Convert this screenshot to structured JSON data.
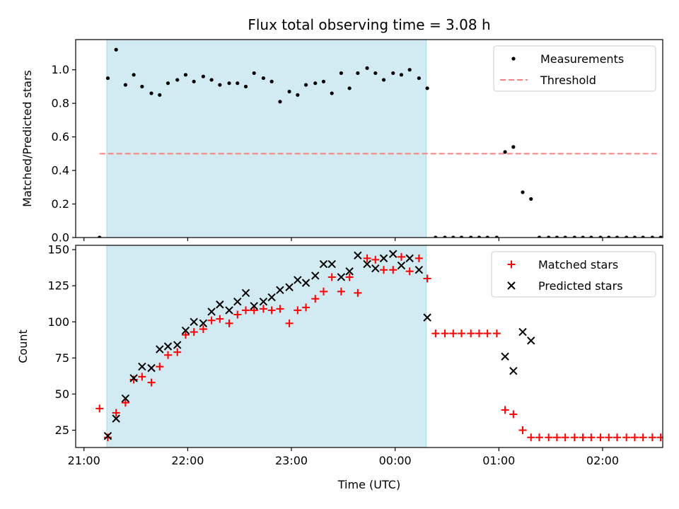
{
  "figure_title": "Flux total observing time = 3.08 h",
  "colors": {
    "shade": "#add8e6",
    "measurement": "#000000",
    "threshold": "#ff8080",
    "matched": "#ff0000",
    "predicted": "#000000"
  },
  "chart_data": [
    {
      "type": "scatter",
      "ylabel": "Matched/Predicted stars",
      "xlim": [
        -0.08,
        5.58
      ],
      "ylim": [
        0,
        1.18
      ],
      "yticks": [
        "0.0",
        "0.2",
        "0.4",
        "0.6",
        "0.8",
        "1.0"
      ],
      "grid": false,
      "legend_position": "top-right",
      "shaded_interval": [
        0.22,
        3.3
      ],
      "threshold": {
        "name": "Threshold",
        "value": 0.5,
        "x_range": [
          0.15,
          5.55
        ]
      },
      "series": [
        {
          "name": "Measurements",
          "marker": "dot",
          "x": [
            0.15,
            0.23,
            0.31,
            0.4,
            0.48,
            0.56,
            0.65,
            0.73,
            0.81,
            0.9,
            0.98,
            1.06,
            1.15,
            1.23,
            1.31,
            1.4,
            1.48,
            1.56,
            1.64,
            1.73,
            1.81,
            1.89,
            1.98,
            2.06,
            2.14,
            2.23,
            2.31,
            2.39,
            2.48,
            2.56,
            2.64,
            2.73,
            2.81,
            2.89,
            2.98,
            3.06,
            3.14,
            3.23,
            3.31,
            3.39,
            3.48,
            3.56,
            3.64,
            3.73,
            3.81,
            3.89,
            3.98,
            4.06,
            4.14,
            4.23,
            4.31,
            4.39,
            4.48,
            4.56,
            4.64,
            4.73,
            4.81,
            4.89,
            4.98,
            5.06,
            5.14,
            5.23,
            5.31,
            5.39,
            5.48,
            5.56
          ],
          "y": [
            0.0,
            0.95,
            1.12,
            0.91,
            0.97,
            0.9,
            0.86,
            0.85,
            0.92,
            0.94,
            0.97,
            0.93,
            0.96,
            0.94,
            0.91,
            0.92,
            0.92,
            0.9,
            0.98,
            0.95,
            0.93,
            0.81,
            0.87,
            0.85,
            0.91,
            0.92,
            0.93,
            0.86,
            0.98,
            0.89,
            0.98,
            1.01,
            0.98,
            0.94,
            0.98,
            0.97,
            1.0,
            0.95,
            0.89,
            0.0,
            0.0,
            0.0,
            0.0,
            0.0,
            0.0,
            0.0,
            0.0,
            0.51,
            0.54,
            0.27,
            0.23,
            0.0,
            0.0,
            0.0,
            0.0,
            0.0,
            0.0,
            0.0,
            0.0,
            0.0,
            0.0,
            0.0,
            0.0,
            0.0,
            0.0,
            0.0
          ]
        }
      ]
    },
    {
      "type": "scatter",
      "xlabel": "Time (UTC)",
      "ylabel": "Count",
      "xlim": [
        -0.08,
        5.58
      ],
      "ylim": [
        13,
        153
      ],
      "yticks": [
        "25",
        "50",
        "75",
        "100",
        "125",
        "150"
      ],
      "xticks": [
        "21:00",
        "22:00",
        "23:00",
        "00:00",
        "01:00",
        "02:00"
      ],
      "grid": false,
      "legend_position": "top-right",
      "shaded_interval": [
        0.22,
        3.3
      ],
      "series": [
        {
          "name": "Matched stars",
          "marker": "plus",
          "x": [
            0.15,
            0.23,
            0.31,
            0.4,
            0.48,
            0.56,
            0.65,
            0.73,
            0.81,
            0.9,
            0.98,
            1.06,
            1.15,
            1.23,
            1.31,
            1.4,
            1.48,
            1.56,
            1.64,
            1.73,
            1.81,
            1.89,
            1.98,
            2.06,
            2.14,
            2.23,
            2.31,
            2.39,
            2.48,
            2.56,
            2.64,
            2.73,
            2.81,
            2.89,
            2.98,
            3.06,
            3.14,
            3.23,
            3.31,
            3.39,
            3.48,
            3.56,
            3.64,
            3.73,
            3.81,
            3.89,
            3.98,
            4.06,
            4.14,
            4.23,
            4.31,
            4.39,
            4.48,
            4.56,
            4.64,
            4.73,
            4.81,
            4.89,
            4.98,
            5.06,
            5.14,
            5.23,
            5.31,
            5.39,
            5.48,
            5.56
          ],
          "y": [
            40,
            20,
            37,
            44,
            60,
            62,
            58,
            69,
            77,
            79,
            91,
            93,
            95,
            101,
            102,
            99,
            105,
            108,
            108,
            109,
            108,
            109,
            99,
            108,
            110,
            116,
            121,
            131,
            121,
            131,
            120,
            144,
            143,
            136,
            136,
            145,
            135,
            144,
            130,
            92,
            92,
            92,
            92,
            92,
            92,
            92,
            92,
            39,
            36,
            25,
            20,
            20,
            20,
            20,
            20,
            20,
            20,
            20,
            20,
            20,
            20,
            20,
            20,
            20,
            20,
            20
          ]
        },
        {
          "name": "Predicted stars",
          "marker": "x",
          "x": [
            0.23,
            0.31,
            0.4,
            0.48,
            0.56,
            0.65,
            0.73,
            0.81,
            0.9,
            0.98,
            1.06,
            1.15,
            1.23,
            1.31,
            1.4,
            1.48,
            1.56,
            1.64,
            1.73,
            1.81,
            1.89,
            1.98,
            2.06,
            2.14,
            2.23,
            2.31,
            2.39,
            2.48,
            2.56,
            2.64,
            2.73,
            2.81,
            2.89,
            2.98,
            3.06,
            3.14,
            3.23,
            3.31,
            4.06,
            4.14,
            4.23,
            4.31
          ],
          "y": [
            21,
            33,
            47,
            61,
            69,
            68,
            81,
            83,
            84,
            94,
            100,
            99,
            107,
            112,
            108,
            114,
            120,
            111,
            114,
            117,
            122,
            124,
            129,
            127,
            132,
            140,
            140,
            131,
            135,
            146,
            140,
            137,
            144,
            147,
            139,
            144,
            136,
            103,
            76,
            66,
            93,
            87
          ]
        }
      ]
    }
  ]
}
